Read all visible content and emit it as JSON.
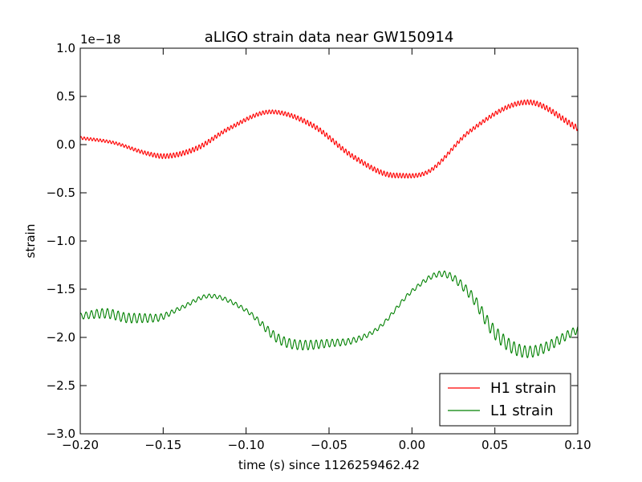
{
  "chart_data": {
    "type": "line",
    "title": "aLIGO strain data near GW150914",
    "xlabel": "time (s) since 1126259462.42",
    "ylabel": "strain",
    "y_offset_label": "1e−18",
    "xlim": [
      -0.2,
      0.1
    ],
    "ylim": [
      -3.0,
      1.0
    ],
    "x_ticks": [
      -0.2,
      -0.15,
      -0.1,
      -0.05,
      0.0,
      0.05,
      0.1
    ],
    "x_tick_labels": [
      "−0.20",
      "−0.15",
      "−0.10",
      "−0.05",
      "0.00",
      "0.05",
      "0.10"
    ],
    "y_ticks": [
      1.0,
      0.5,
      0.0,
      -0.5,
      -1.0,
      -1.5,
      -2.0,
      -2.5,
      -3.0
    ],
    "y_tick_labels": [
      "1.0",
      "0.5",
      "0.0",
      "−0.5",
      "−1.0",
      "−1.5",
      "−2.0",
      "−2.5",
      "−3.0"
    ],
    "grid": false,
    "legend_position": "bottom-right",
    "series": [
      {
        "name": "H1 strain",
        "color": "#ff0000",
        "jitter_amplitude": [
          0.015,
          0.015,
          0.02,
          0.025,
          0.025,
          0.02,
          0.02,
          0.025,
          0.025,
          0.025,
          0.02,
          0.02,
          0.025,
          0.03
        ],
        "x": [
          -0.2,
          -0.18,
          -0.16,
          -0.15,
          -0.13,
          -0.11,
          -0.085,
          -0.06,
          -0.035,
          -0.01,
          0.01,
          0.035,
          0.07,
          0.1
        ],
        "y": [
          0.07,
          0.02,
          -0.09,
          -0.12,
          -0.04,
          0.17,
          0.34,
          0.2,
          -0.13,
          -0.32,
          -0.28,
          0.14,
          0.44,
          0.17
        ]
      },
      {
        "name": "L1 strain",
        "color": "#008000",
        "jitter_amplitude": [
          0.03,
          0.05,
          0.05,
          0.04,
          0.02,
          0.02,
          0.02,
          0.05,
          0.05,
          0.04,
          0.03,
          0.02,
          0.02,
          0.03,
          0.05,
          0.07,
          0.06,
          0.04
        ],
        "x": [
          -0.2,
          -0.185,
          -0.17,
          -0.155,
          -0.14,
          -0.122,
          -0.1,
          -0.08,
          -0.065,
          -0.05,
          -0.035,
          -0.02,
          0.0,
          0.018,
          0.035,
          0.05,
          0.07,
          0.1
        ],
        "y": [
          -1.78,
          -1.75,
          -1.8,
          -1.8,
          -1.7,
          -1.57,
          -1.72,
          -2.02,
          -2.08,
          -2.06,
          -2.03,
          -1.9,
          -1.52,
          -1.34,
          -1.55,
          -1.95,
          -2.15,
          -1.92
        ]
      }
    ]
  }
}
